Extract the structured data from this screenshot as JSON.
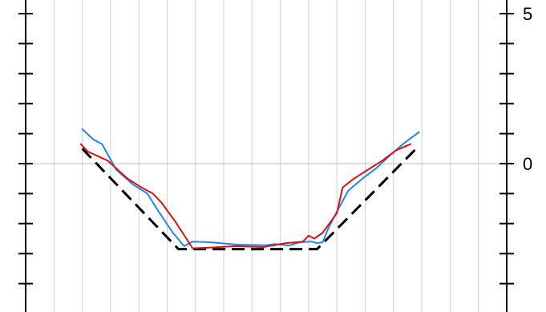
{
  "chart_data": {
    "type": "line",
    "title": "",
    "xlabel": "",
    "ylabel": "",
    "xlim": [
      0,
      17
    ],
    "ylim": [
      -4.9,
      5
    ],
    "grid": {
      "vertical": true,
      "horizontal_zero": true
    },
    "right_axis": {
      "ticks": [
        5,
        4,
        3,
        2,
        1,
        0,
        -1,
        -2,
        -3,
        -4
      ],
      "tick_labels": [
        {
          "value": 5,
          "text": "5"
        },
        {
          "value": 0,
          "text": "0"
        }
      ]
    },
    "left_axis": {
      "ticks": [
        5,
        4,
        3,
        2,
        1,
        0,
        -1,
        -2,
        -3,
        -4
      ]
    },
    "series": [
      {
        "color": "#000000",
        "style": "dashed",
        "x": [
          2.0,
          5.4,
          10.3,
          13.8
        ],
        "y": [
          0.5,
          -2.85,
          -2.85,
          0.5
        ]
      },
      {
        "color": "#1e88e5",
        "style": "solid",
        "x": [
          2.0,
          2.4,
          2.7,
          3.2,
          3.8,
          4.3,
          4.7,
          5.2,
          5.6,
          5.9,
          6.5,
          7.5,
          8.5,
          8.8,
          9.3,
          9.7,
          10.1,
          10.3,
          10.5,
          10.7,
          11.0,
          11.4,
          11.9,
          12.4,
          12.9,
          13.4,
          13.9
        ],
        "y": [
          1.15,
          0.8,
          0.65,
          -0.2,
          -0.7,
          -1.0,
          -1.6,
          -2.3,
          -2.75,
          -2.6,
          -2.62,
          -2.7,
          -2.72,
          -2.68,
          -2.73,
          -2.62,
          -2.6,
          -2.65,
          -2.62,
          -2.15,
          -1.6,
          -0.9,
          -0.5,
          -0.15,
          0.3,
          0.7,
          1.05
        ]
      },
      {
        "color": "#e01010",
        "style": "solid",
        "x": [
          1.95,
          2.2,
          2.9,
          3.6,
          4.1,
          4.5,
          4.8,
          5.3,
          5.9,
          6.5,
          7.4,
          8.4,
          9.2,
          9.8,
          10.0,
          10.2,
          10.5,
          11.0,
          11.2,
          11.6,
          12.1,
          12.6,
          13.1,
          13.6
        ],
        "y": [
          0.65,
          0.4,
          0.1,
          -0.5,
          -0.8,
          -1.0,
          -1.3,
          -1.95,
          -2.82,
          -2.8,
          -2.75,
          -2.78,
          -2.65,
          -2.6,
          -2.4,
          -2.5,
          -2.3,
          -1.65,
          -0.8,
          -0.5,
          -0.2,
          0.1,
          0.45,
          0.65
        ]
      }
    ]
  }
}
